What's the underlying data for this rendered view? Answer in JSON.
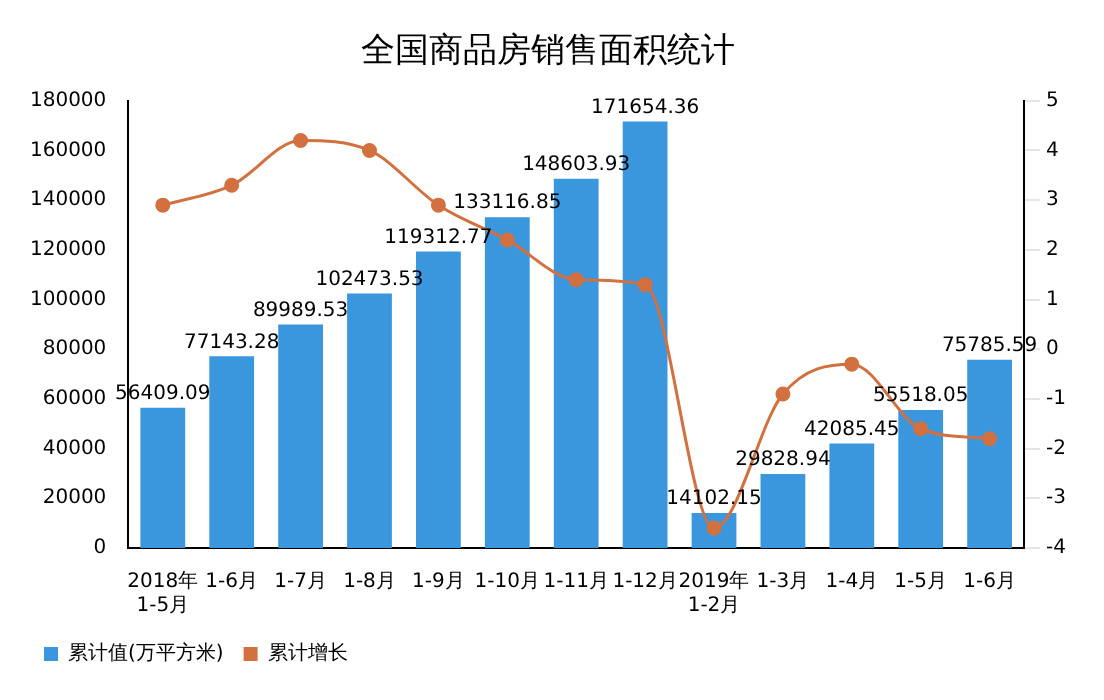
{
  "chart_data": {
    "type": "bar",
    "title": "全国商品房销售面积统计",
    "categories": [
      "2018年\n1-5月",
      "1-6月",
      "1-7月",
      "1-8月",
      "1-9月",
      "1-10月",
      "1-11月",
      "1-12月",
      "2019年\n1-2月",
      "1-3月",
      "1-4月",
      "1-5月",
      "1-6月"
    ],
    "series": [
      {
        "name": "累计值(万平方米)",
        "color": "#3a96dd",
        "values": [
          56409.09,
          77143.28,
          89989.53,
          102473.53,
          119312.77,
          133116.85,
          148603.93,
          171654.36,
          14102.15,
          29828.94,
          42085.45,
          55518.05,
          75785.59
        ],
        "value_labels": [
          "56409.09",
          "77143.28",
          "89989.53",
          "102473.53",
          "119312.77",
          "133116.85",
          "148603.93",
          "171654.36",
          "14102.15",
          "29828.94",
          "42085.45",
          "55518.05",
          "75785.59"
        ]
      },
      {
        "name": "累计增长",
        "type": "line",
        "axis": "y2",
        "color": "#d2703f",
        "values": [
          2.9,
          3.3,
          4.2,
          4.0,
          2.9,
          2.2,
          1.4,
          1.3,
          -3.6,
          -0.9,
          -0.3,
          -1.6,
          -1.8
        ]
      }
    ],
    "ylim": [
      0,
      180000
    ],
    "yticks": [
      0,
      20000,
      40000,
      60000,
      80000,
      100000,
      120000,
      140000,
      160000,
      180000
    ],
    "y2lim": [
      -4,
      5
    ],
    "y2ticks": [
      -4,
      -3,
      -2,
      -1,
      0,
      1,
      2,
      3,
      4,
      5
    ],
    "grid": false,
    "legend": "bottom left",
    "marker": "circle",
    "line_style": "solid"
  }
}
